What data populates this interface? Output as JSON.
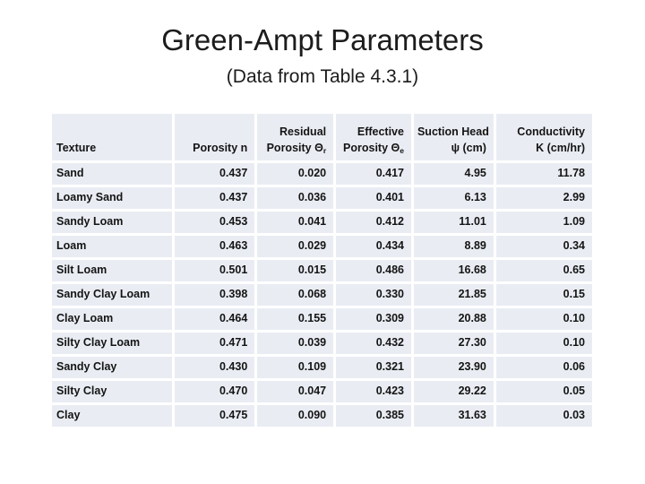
{
  "slide": {
    "title": "Green-Ampt Parameters",
    "subtitle": "(Data from Table 4.3.1)"
  },
  "colors": {
    "background": "#ffffff",
    "cell_background": "#e9edf3",
    "text": "#1c1c1c"
  },
  "table": {
    "columns": [
      {
        "line1": "",
        "line2": "Texture",
        "sub": ""
      },
      {
        "line1": "",
        "line2": "Porosity n",
        "sub": ""
      },
      {
        "line1": "Residual",
        "line2": "Porosity Θ",
        "sub": "r"
      },
      {
        "line1": "Effective",
        "line2": "Porosity Θ",
        "sub": "e"
      },
      {
        "line1": "Suction Head",
        "line2": "ψ (cm)",
        "sub": ""
      },
      {
        "line1": "Conductivity",
        "line2": "K (cm/hr)",
        "sub": ""
      }
    ],
    "rows": [
      {
        "texture": "Sand",
        "porosity_n": "0.437",
        "residual_porosity": "0.020",
        "effective_porosity": "0.417",
        "suction_head": "4.95",
        "conductivity": "11.78"
      },
      {
        "texture": "Loamy Sand",
        "porosity_n": "0.437",
        "residual_porosity": "0.036",
        "effective_porosity": "0.401",
        "suction_head": "6.13",
        "conductivity": "2.99"
      },
      {
        "texture": "Sandy Loam",
        "porosity_n": "0.453",
        "residual_porosity": "0.041",
        "effective_porosity": "0.412",
        "suction_head": "11.01",
        "conductivity": "1.09"
      },
      {
        "texture": "Loam",
        "porosity_n": "0.463",
        "residual_porosity": "0.029",
        "effective_porosity": "0.434",
        "suction_head": "8.89",
        "conductivity": "0.34"
      },
      {
        "texture": "Silt Loam",
        "porosity_n": "0.501",
        "residual_porosity": "0.015",
        "effective_porosity": "0.486",
        "suction_head": "16.68",
        "conductivity": "0.65"
      },
      {
        "texture": "Sandy Clay Loam",
        "porosity_n": "0.398",
        "residual_porosity": "0.068",
        "effective_porosity": "0.330",
        "suction_head": "21.85",
        "conductivity": "0.15"
      },
      {
        "texture": "Clay Loam",
        "porosity_n": "0.464",
        "residual_porosity": "0.155",
        "effective_porosity": "0.309",
        "suction_head": "20.88",
        "conductivity": "0.10"
      },
      {
        "texture": "Silty Clay Loam",
        "porosity_n": "0.471",
        "residual_porosity": "0.039",
        "effective_porosity": "0.432",
        "suction_head": "27.30",
        "conductivity": "0.10"
      },
      {
        "texture": "Sandy Clay",
        "porosity_n": "0.430",
        "residual_porosity": "0.109",
        "effective_porosity": "0.321",
        "suction_head": "23.90",
        "conductivity": "0.06"
      },
      {
        "texture": "Silty Clay",
        "porosity_n": "0.470",
        "residual_porosity": "0.047",
        "effective_porosity": "0.423",
        "suction_head": "29.22",
        "conductivity": "0.05"
      },
      {
        "texture": "Clay",
        "porosity_n": "0.475",
        "residual_porosity": "0.090",
        "effective_porosity": "0.385",
        "suction_head": "31.63",
        "conductivity": "0.03"
      }
    ]
  }
}
